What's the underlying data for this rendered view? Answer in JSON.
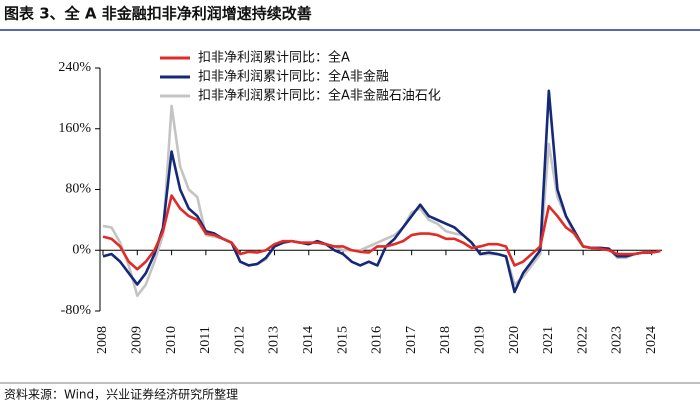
{
  "chart_data": {
    "type": "line",
    "title": "图表 3、全 A 非金融扣非净利润增速持续改善",
    "source": "资料来源：Wind，兴业证券经济研究所整理",
    "x": [
      2008,
      2008.25,
      2008.5,
      2008.75,
      2009,
      2009.25,
      2009.5,
      2009.75,
      2010,
      2010.25,
      2010.5,
      2010.75,
      2011,
      2011.25,
      2011.5,
      2011.75,
      2012,
      2012.25,
      2012.5,
      2012.75,
      2013,
      2013.25,
      2013.5,
      2013.75,
      2014,
      2014.25,
      2014.5,
      2014.75,
      2015,
      2015.25,
      2015.5,
      2015.75,
      2016,
      2016.25,
      2016.5,
      2016.75,
      2017,
      2017.25,
      2017.5,
      2017.75,
      2018,
      2018.25,
      2018.5,
      2018.75,
      2019,
      2019.25,
      2019.5,
      2019.75,
      2020,
      2020.25,
      2020.5,
      2020.75,
      2021,
      2021.25,
      2021.5,
      2021.75,
      2022,
      2022.25,
      2022.5,
      2022.75,
      2023,
      2023.25,
      2023.5,
      2023.75,
      2024,
      2024.25
    ],
    "series": [
      {
        "name": "扣非净利润累计同比：全A",
        "color": "#e02b27",
        "values": [
          18,
          15,
          5,
          -15,
          -25,
          -15,
          0,
          25,
          72,
          55,
          45,
          40,
          22,
          20,
          15,
          10,
          -5,
          -2,
          -3,
          0,
          8,
          12,
          12,
          10,
          10,
          10,
          8,
          5,
          5,
          0,
          -2,
          -3,
          5,
          5,
          8,
          12,
          20,
          22,
          22,
          20,
          15,
          15,
          10,
          3,
          5,
          8,
          8,
          5,
          -20,
          -15,
          -5,
          5,
          58,
          45,
          30,
          22,
          5,
          3,
          2,
          0,
          -5,
          -5,
          -5,
          -3,
          -3,
          -1
        ]
      },
      {
        "name": "扣非净利润累计同比：全A非金融",
        "color": "#15297a",
        "values": [
          -8,
          -5,
          -15,
          -30,
          -45,
          -30,
          -5,
          30,
          130,
          80,
          55,
          45,
          25,
          22,
          15,
          10,
          -15,
          -20,
          -18,
          -10,
          5,
          10,
          12,
          10,
          8,
          12,
          8,
          0,
          -5,
          -15,
          -20,
          -15,
          -20,
          5,
          15,
          30,
          45,
          60,
          45,
          40,
          35,
          30,
          20,
          10,
          -5,
          -3,
          -5,
          -8,
          -55,
          -30,
          -15,
          0,
          210,
          80,
          45,
          25,
          5,
          3,
          3,
          2,
          -8,
          -8,
          -5,
          -3,
          -3,
          -1
        ]
      },
      {
        "name": "扣非净利润累计同比：全A非金融石油石化",
        "color": "#c4c4c4",
        "values": [
          32,
          30,
          10,
          -20,
          -60,
          -45,
          -15,
          20,
          190,
          110,
          80,
          70,
          20,
          18,
          15,
          10,
          -15,
          -20,
          -18,
          -12,
          5,
          10,
          12,
          10,
          10,
          10,
          8,
          5,
          0,
          0,
          0,
          5,
          10,
          15,
          20,
          30,
          50,
          55,
          40,
          35,
          25,
          22,
          20,
          10,
          -5,
          -5,
          -5,
          -8,
          -45,
          -35,
          -20,
          -5,
          140,
          70,
          45,
          20,
          5,
          3,
          3,
          2,
          -10,
          -10,
          -5,
          -3,
          -3,
          -1
        ]
      }
    ],
    "xlim": [
      2008,
      2024.3
    ],
    "xticks": [
      2008,
      2009,
      2010,
      2011,
      2012,
      2013,
      2014,
      2015,
      2016,
      2017,
      2018,
      2019,
      2020,
      2021,
      2022,
      2023,
      2024
    ],
    "ylim": [
      -80,
      240
    ],
    "yticks": [
      {
        "value": -80,
        "label": "-80%"
      },
      {
        "value": 0,
        "label": "0%"
      },
      {
        "value": 80,
        "label": "80%"
      },
      {
        "value": 160,
        "label": "160%"
      },
      {
        "value": 240,
        "label": "240%"
      }
    ],
    "legend": "upper-left"
  }
}
